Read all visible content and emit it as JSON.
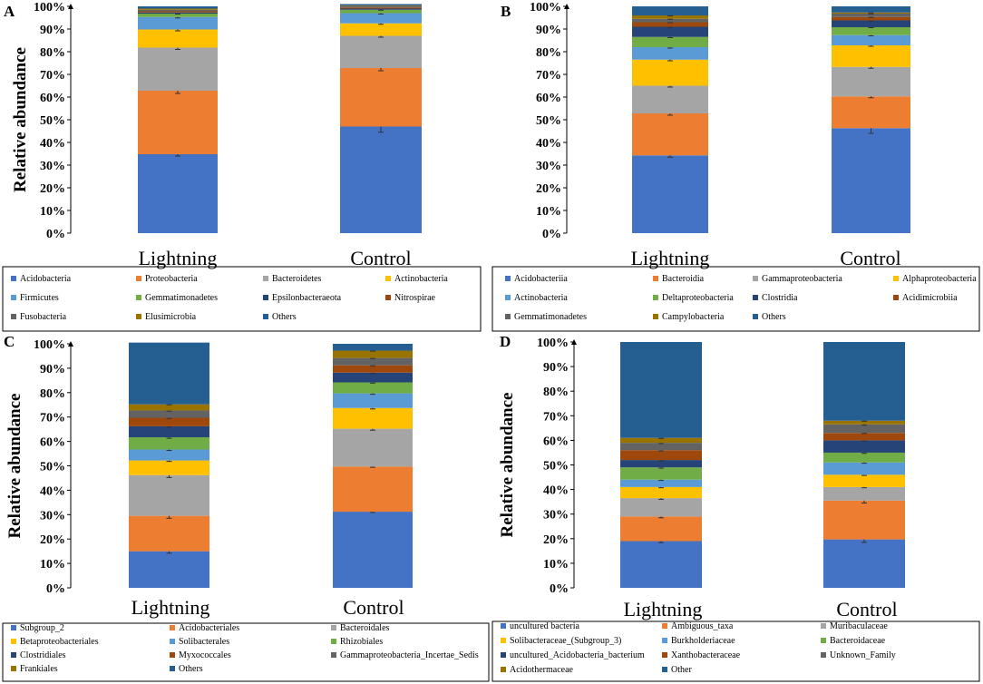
{
  "figure": {
    "panel_labels": [
      "A",
      "B",
      "C",
      "D"
    ]
  },
  "chart_data": [
    {
      "panel": "A",
      "type": "bar",
      "stacked": true,
      "ylabel": "Relative abundance",
      "ylim": [
        0,
        100
      ],
      "yticks": [
        "0%",
        "10%",
        "20%",
        "30%",
        "40%",
        "50%",
        "60%",
        "70%",
        "80%",
        "90%",
        "100%"
      ],
      "categories": [
        "Lightning",
        "Control"
      ],
      "series": [
        {
          "name": "Acidobacteria",
          "color": "#4472C4",
          "values": [
            34.8,
            47.0
          ],
          "errors": [
            0.8,
            2.5
          ]
        },
        {
          "name": "Proteobacteria",
          "color": "#ED7D31",
          "values": [
            28.0,
            25.8
          ],
          "errors": [
            1.2,
            1.2
          ]
        },
        {
          "name": "Bacteroidetes",
          "color": "#A5A5A5",
          "values": [
            19.0,
            14.2
          ],
          "errors": [
            0.8,
            0.6
          ]
        },
        {
          "name": "Actinobacteria",
          "color": "#FFC000",
          "values": [
            8.0,
            5.5
          ],
          "errors": [
            0.6,
            0.4
          ]
        },
        {
          "name": "Firmicutes",
          "color": "#5B9BD5",
          "values": [
            5.5,
            4.5
          ],
          "errors": [
            0.4,
            0.4
          ]
        },
        {
          "name": "Gemmatimonadetes",
          "color": "#70AD47",
          "values": [
            1.5,
            1.5
          ],
          "errors": [
            0.2,
            0.2
          ]
        },
        {
          "name": "Epsilonbacteraeota",
          "color": "#264478",
          "values": [
            0.5,
            0.5
          ],
          "errors": [
            0,
            0
          ]
        },
        {
          "name": "Nitrospirae",
          "color": "#9E480E",
          "values": [
            0.5,
            0.5
          ],
          "errors": [
            0,
            0
          ]
        },
        {
          "name": "Fusobacteria",
          "color": "#636363",
          "values": [
            0.7,
            0.5
          ],
          "errors": [
            0,
            0
          ]
        },
        {
          "name": "Elusimicrobia",
          "color": "#997300",
          "values": [
            0.5,
            0.3
          ],
          "errors": [
            0,
            0
          ]
        },
        {
          "name": "Others",
          "color": "#255E91",
          "values": [
            1.0,
            0.7
          ],
          "errors": [
            0,
            0
          ]
        }
      ]
    },
    {
      "panel": "B",
      "type": "bar",
      "stacked": true,
      "ylabel": "",
      "ylim": [
        0,
        100
      ],
      "yticks": [
        "0%",
        "10%",
        "20%",
        "30%",
        "40%",
        "50%",
        "60%",
        "70%",
        "80%",
        "90%",
        "100%"
      ],
      "categories": [
        "Lightning",
        "Control"
      ],
      "series": [
        {
          "name": "Acidobacteriia",
          "color": "#4472C4",
          "values": [
            34.3,
            46.3
          ],
          "errors": [
            0.8,
            2.3
          ]
        },
        {
          "name": "Bacteroidia",
          "color": "#ED7D31",
          "values": [
            18.5,
            14.0
          ],
          "errors": [
            0.8,
            0.6
          ]
        },
        {
          "name": "Gammaproteobacteria",
          "color": "#A5A5A5",
          "values": [
            12.2,
            13.0
          ],
          "errors": [
            0.6,
            0.6
          ]
        },
        {
          "name": "Alphaproteobacteria",
          "color": "#FFC000",
          "values": [
            11.5,
            9.5
          ],
          "errors": [
            0.5,
            0.4
          ]
        },
        {
          "name": "Actinobacteria",
          "color": "#5B9BD5",
          "values": [
            5.5,
            4.5
          ],
          "errors": [
            0.4,
            0.3
          ]
        },
        {
          "name": "Deltaproteobacteria",
          "color": "#70AD47",
          "values": [
            4.5,
            3.5
          ],
          "errors": [
            0.3,
            0.2
          ]
        },
        {
          "name": "Clostridia",
          "color": "#264478",
          "values": [
            4.5,
            3.0
          ],
          "errors": [
            0.3,
            0.2
          ]
        },
        {
          "name": "Acidimicrobiia",
          "color": "#9E480E",
          "values": [
            2.0,
            1.5
          ],
          "errors": [
            0.2,
            0.2
          ]
        },
        {
          "name": "Gemmatimonadetes",
          "color": "#636363",
          "values": [
            1.5,
            1.5
          ],
          "errors": [
            0.2,
            0.2
          ]
        },
        {
          "name": "Campylobacteria",
          "color": "#997300",
          "values": [
            1.5,
            0.5
          ],
          "errors": [
            0.2,
            0.1
          ]
        },
        {
          "name": "Others",
          "color": "#255E91",
          "values": [
            4.0,
            2.7
          ],
          "errors": [
            0,
            0
          ]
        }
      ]
    },
    {
      "panel": "C",
      "type": "bar",
      "stacked": true,
      "ylabel": "Relative abundance",
      "ylim": [
        0,
        100
      ],
      "yticks": [
        "0%",
        "10%",
        "20%",
        "30%",
        "40%",
        "50%",
        "60%",
        "70%",
        "80%",
        "90%",
        "100%"
      ],
      "categories": [
        "Lightning",
        "Control"
      ],
      "series": [
        {
          "name": "Subgroup_2",
          "color": "#4472C4",
          "values": [
            15.0,
            31.2
          ],
          "errors": [
            0.8,
            0.3
          ]
        },
        {
          "name": "Acidobacteriales",
          "color": "#ED7D31",
          "values": [
            14.5,
            18.5
          ],
          "errors": [
            1.0,
            0.3
          ]
        },
        {
          "name": "Bacteroidales",
          "color": "#A5A5A5",
          "values": [
            16.7,
            15.5
          ],
          "errors": [
            1.0,
            0.6
          ]
        },
        {
          "name": "Betaproteobacteriales",
          "color": "#FFC000",
          "values": [
            6.0,
            8.5
          ],
          "errors": [
            0.4,
            0.4
          ]
        },
        {
          "name": "Solibacterales",
          "color": "#5B9BD5",
          "values": [
            4.5,
            6.0
          ],
          "errors": [
            0.4,
            0.4
          ]
        },
        {
          "name": "Rhizobiales",
          "color": "#70AD47",
          "values": [
            5.0,
            4.5
          ],
          "errors": [
            0.4,
            0.3
          ]
        },
        {
          "name": "Clostridiales",
          "color": "#264478",
          "values": [
            4.5,
            4.0
          ],
          "errors": [
            0.3,
            0.3
          ]
        },
        {
          "name": "Myxococcales",
          "color": "#9E480E",
          "values": [
            3.5,
            3.0
          ],
          "errors": [
            0.3,
            0.2
          ]
        },
        {
          "name": "Gammaproteobacteria_Incertae_Sedis",
          "color": "#636363",
          "values": [
            3.0,
            3.0
          ],
          "errors": [
            0.3,
            0.2
          ]
        },
        {
          "name": "Frankiales",
          "color": "#997300",
          "values": [
            2.5,
            3.0
          ],
          "errors": [
            0.2,
            0.2
          ]
        },
        {
          "name": "Others",
          "color": "#255E91",
          "values": [
            25.3,
            2.8
          ],
          "errors": [
            0,
            0
          ]
        }
      ]
    },
    {
      "panel": "D",
      "type": "bar",
      "stacked": true,
      "ylabel": "Relative abundance",
      "ylim": [
        0,
        100
      ],
      "yticks": [
        "0%",
        "10%",
        "20%",
        "30%",
        "40%",
        "50%",
        "60%",
        "70%",
        "80%",
        "90%",
        "100%"
      ],
      "categories": [
        "Lightning",
        "Control"
      ],
      "series": [
        {
          "name": "uncultured bacteria",
          "color": "#4472C4",
          "values": [
            19.0,
            19.7
          ],
          "errors": [
            0.6,
            1.2
          ]
        },
        {
          "name": "Ambiguous_taxa",
          "color": "#ED7D31",
          "values": [
            10.0,
            15.8
          ],
          "errors": [
            0.5,
            1.0
          ]
        },
        {
          "name": "Muribaculaceae",
          "color": "#A5A5A5",
          "values": [
            7.5,
            5.5
          ],
          "errors": [
            0.5,
            0.3
          ]
        },
        {
          "name": "Solibacteraceae_(Subgroup_3)",
          "color": "#FFC000",
          "values": [
            4.5,
            5.0
          ],
          "errors": [
            0.3,
            0.3
          ]
        },
        {
          "name": "Burkholderiaceae",
          "color": "#5B9BD5",
          "values": [
            3.0,
            5.0
          ],
          "errors": [
            0.3,
            0.3
          ]
        },
        {
          "name": "Bacteroidaceae",
          "color": "#70AD47",
          "values": [
            5.0,
            4.0
          ],
          "errors": [
            0.3,
            0.3
          ]
        },
        {
          "name": "uncultured_Acidobacteria_bacterium",
          "color": "#264478",
          "values": [
            3.0,
            5.0
          ],
          "errors": [
            0.3,
            0.3
          ]
        },
        {
          "name": "Xanthobacteraceae",
          "color": "#9E480E",
          "values": [
            4.0,
            3.0
          ],
          "errors": [
            0.3,
            0.2
          ]
        },
        {
          "name": "Unknown_Family",
          "color": "#636363",
          "values": [
            3.0,
            3.5
          ],
          "errors": [
            0.3,
            0.3
          ]
        },
        {
          "name": "Acidothermaceae",
          "color": "#997300",
          "values": [
            2.0,
            1.5
          ],
          "errors": [
            0.2,
            0.2
          ]
        },
        {
          "name": "Other",
          "color": "#255E91",
          "values": [
            39.0,
            32.0
          ],
          "errors": [
            0,
            0
          ]
        }
      ]
    }
  ]
}
